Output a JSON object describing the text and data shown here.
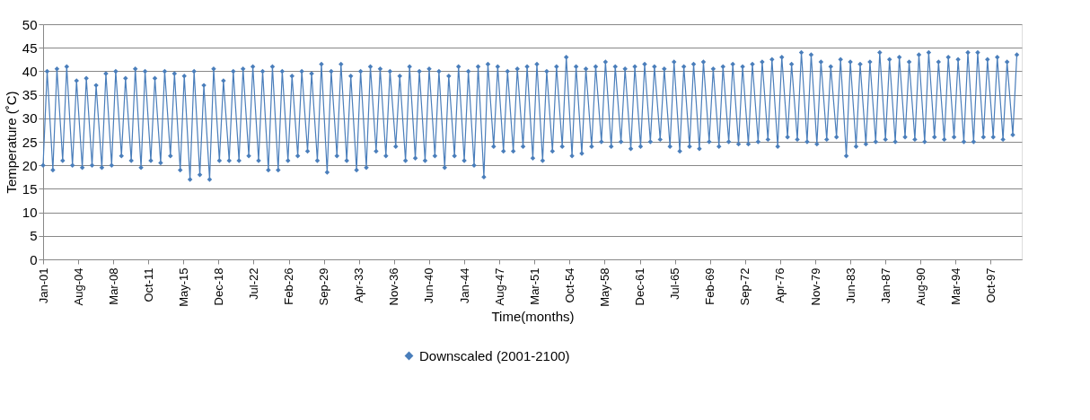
{
  "chart_data": {
    "type": "line",
    "xlabel": "Time(months)",
    "ylabel": "Temperature (˚C)",
    "ylim": [
      0,
      50
    ],
    "yticks": [
      0,
      5,
      10,
      15,
      20,
      25,
      30,
      35,
      40,
      45,
      50
    ],
    "xlim": [
      "2001-01",
      "2100-12"
    ],
    "xticks": [
      {
        "value": "2001-01",
        "label": "Jan-01"
      },
      {
        "value": "2004-08",
        "label": "Aug-04"
      },
      {
        "value": "2008-03",
        "label": "Mar-08"
      },
      {
        "value": "2011-10",
        "label": "Oct-11"
      },
      {
        "value": "2015-05",
        "label": "May-15"
      },
      {
        "value": "2018-12",
        "label": "Dec-18"
      },
      {
        "value": "2022-07",
        "label": "Jul-22"
      },
      {
        "value": "2026-02",
        "label": "Feb-26"
      },
      {
        "value": "2029-09",
        "label": "Sep-29"
      },
      {
        "value": "2033-04",
        "label": "Apr-33"
      },
      {
        "value": "2036-11",
        "label": "Nov-36"
      },
      {
        "value": "2040-06",
        "label": "Jun-40"
      },
      {
        "value": "2044-01",
        "label": "Jan-44"
      },
      {
        "value": "2047-08",
        "label": "Aug-47"
      },
      {
        "value": "2051-03",
        "label": "Mar-51"
      },
      {
        "value": "2054-10",
        "label": "Oct-54"
      },
      {
        "value": "2058-05",
        "label": "May-58"
      },
      {
        "value": "2061-12",
        "label": "Dec-61"
      },
      {
        "value": "2065-07",
        "label": "Jul-65"
      },
      {
        "value": "2069-02",
        "label": "Feb-69"
      },
      {
        "value": "2072-09",
        "label": "Sep-72"
      },
      {
        "value": "2076-04",
        "label": "Apr-76"
      },
      {
        "value": "2079-11",
        "label": "Nov-79"
      },
      {
        "value": "2083-06",
        "label": "Jun-83"
      },
      {
        "value": "2087-01",
        "label": "Jan-87"
      },
      {
        "value": "2090-08",
        "label": "Aug-90"
      },
      {
        "value": "2094-03",
        "label": "Mar-94"
      },
      {
        "value": "2097-10",
        "label": "Oct-97"
      }
    ],
    "grid": "y",
    "legend": "bottom",
    "marker": "diamond",
    "line_style": "solid",
    "series": [
      {
        "name": "Downscaled (2001-2100)",
        "color": "#4a7ebb",
        "x": [
          "2001-01",
          "2001-06",
          "2002-01",
          "2002-06",
          "2003-01",
          "2003-06",
          "2004-01",
          "2004-06",
          "2005-01",
          "2005-06",
          "2006-01",
          "2006-06",
          "2007-01",
          "2007-06",
          "2008-01",
          "2008-06",
          "2009-01",
          "2009-06",
          "2010-01",
          "2010-06",
          "2011-01",
          "2011-06",
          "2012-01",
          "2012-06",
          "2013-01",
          "2013-06",
          "2014-01",
          "2014-06",
          "2015-01",
          "2015-06",
          "2016-01",
          "2016-06",
          "2017-01",
          "2017-06",
          "2018-01",
          "2018-06",
          "2019-01",
          "2019-06",
          "2020-01",
          "2020-06",
          "2021-01",
          "2021-06",
          "2022-01",
          "2022-06",
          "2023-01",
          "2023-06",
          "2024-01",
          "2024-06",
          "2025-01",
          "2025-06",
          "2026-01",
          "2026-06",
          "2027-01",
          "2027-06",
          "2028-01",
          "2028-06",
          "2029-01",
          "2029-06",
          "2030-01",
          "2030-06",
          "2031-01",
          "2031-06",
          "2032-01",
          "2032-06",
          "2033-01",
          "2033-06",
          "2034-01",
          "2034-06",
          "2035-01",
          "2035-06",
          "2036-01",
          "2036-06",
          "2037-01",
          "2037-06",
          "2038-01",
          "2038-06",
          "2039-01",
          "2039-06",
          "2040-01",
          "2040-06",
          "2041-01",
          "2041-06",
          "2042-01",
          "2042-06",
          "2043-01",
          "2043-06",
          "2044-01",
          "2044-06",
          "2045-01",
          "2045-06",
          "2046-01",
          "2046-06",
          "2047-01",
          "2047-06",
          "2048-01",
          "2048-06",
          "2049-01",
          "2049-06",
          "2050-01",
          "2050-06",
          "2051-01",
          "2051-06",
          "2052-01",
          "2052-06",
          "2053-01",
          "2053-06",
          "2054-01",
          "2054-06",
          "2055-01",
          "2055-06",
          "2056-01",
          "2056-06",
          "2057-01",
          "2057-06",
          "2058-01",
          "2058-06",
          "2059-01",
          "2059-06",
          "2060-01",
          "2060-06",
          "2061-01",
          "2061-06",
          "2062-01",
          "2062-06",
          "2063-01",
          "2063-06",
          "2064-01",
          "2064-06",
          "2065-01",
          "2065-06",
          "2066-01",
          "2066-06",
          "2067-01",
          "2067-06",
          "2068-01",
          "2068-06",
          "2069-01",
          "2069-06",
          "2070-01",
          "2070-06",
          "2071-01",
          "2071-06",
          "2072-01",
          "2072-06",
          "2073-01",
          "2073-06",
          "2074-01",
          "2074-06",
          "2075-01",
          "2075-06",
          "2076-01",
          "2076-06",
          "2077-01",
          "2077-06",
          "2078-01",
          "2078-06",
          "2079-01",
          "2079-06",
          "2080-01",
          "2080-06",
          "2081-01",
          "2081-06",
          "2082-01",
          "2082-06",
          "2083-01",
          "2083-06",
          "2084-01",
          "2084-06",
          "2085-01",
          "2085-06",
          "2086-01",
          "2086-06",
          "2087-01",
          "2087-06",
          "2088-01",
          "2088-06",
          "2089-01",
          "2089-06",
          "2090-01",
          "2090-06",
          "2091-01",
          "2091-06",
          "2092-01",
          "2092-06",
          "2093-01",
          "2093-06",
          "2094-01",
          "2094-06",
          "2095-01",
          "2095-06",
          "2096-01",
          "2096-06",
          "2097-01",
          "2097-06",
          "2098-01",
          "2098-06",
          "2099-01",
          "2099-06",
          "2100-01",
          "2100-06"
        ],
        "values": [
          20,
          40,
          19,
          40.5,
          21,
          41,
          20,
          38,
          19.5,
          38.5,
          20,
          37,
          19.5,
          39.5,
          20,
          40,
          22,
          38.5,
          21,
          40.5,
          19.5,
          40,
          21,
          38.5,
          20.5,
          40,
          22,
          39.5,
          19,
          39,
          17,
          40,
          18,
          37,
          17,
          40.5,
          21,
          38,
          21,
          40,
          21,
          40.5,
          22,
          41,
          21,
          40,
          19,
          41,
          19,
          40,
          21,
          39,
          22,
          40,
          23,
          39.5,
          21,
          41.5,
          18.5,
          40,
          22,
          41.5,
          21,
          39,
          19,
          40,
          19.5,
          41,
          23,
          40.5,
          22,
          40,
          24,
          39,
          21,
          41,
          21.5,
          40,
          21,
          40.5,
          22,
          40,
          19.5,
          39,
          22,
          41,
          21,
          40,
          20,
          41,
          17.5,
          41.5,
          24,
          41,
          23,
          40,
          23,
          40.5,
          24,
          41,
          21.5,
          41.5,
          21,
          40,
          23,
          41,
          24,
          43,
          22,
          41,
          22.5,
          40.5,
          24,
          41,
          25,
          42,
          24,
          41,
          25,
          40.5,
          23.5,
          41,
          24,
          41.5,
          25,
          41,
          25.5,
          40.5,
          24,
          42,
          23,
          41,
          24,
          41.5,
          23.5,
          42,
          25,
          40.5,
          24,
          41,
          25,
          41.5,
          24.5,
          41,
          24.5,
          41.5,
          25,
          42,
          25.5,
          42.5,
          24,
          43,
          26,
          41.5,
          25.5,
          44,
          25,
          43.5,
          24.5,
          42,
          25.5,
          41,
          26,
          42.5,
          22,
          42,
          24,
          41.5,
          24.5,
          42,
          25,
          44,
          25.5,
          42.5,
          25,
          43,
          26,
          42,
          25.5,
          43.5,
          25,
          44,
          26,
          42,
          25.5,
          43,
          26,
          42.5,
          25,
          44,
          25,
          44,
          26,
          42.5,
          26,
          43,
          25.5,
          42,
          26.5,
          43.5
        ]
      }
    ]
  }
}
